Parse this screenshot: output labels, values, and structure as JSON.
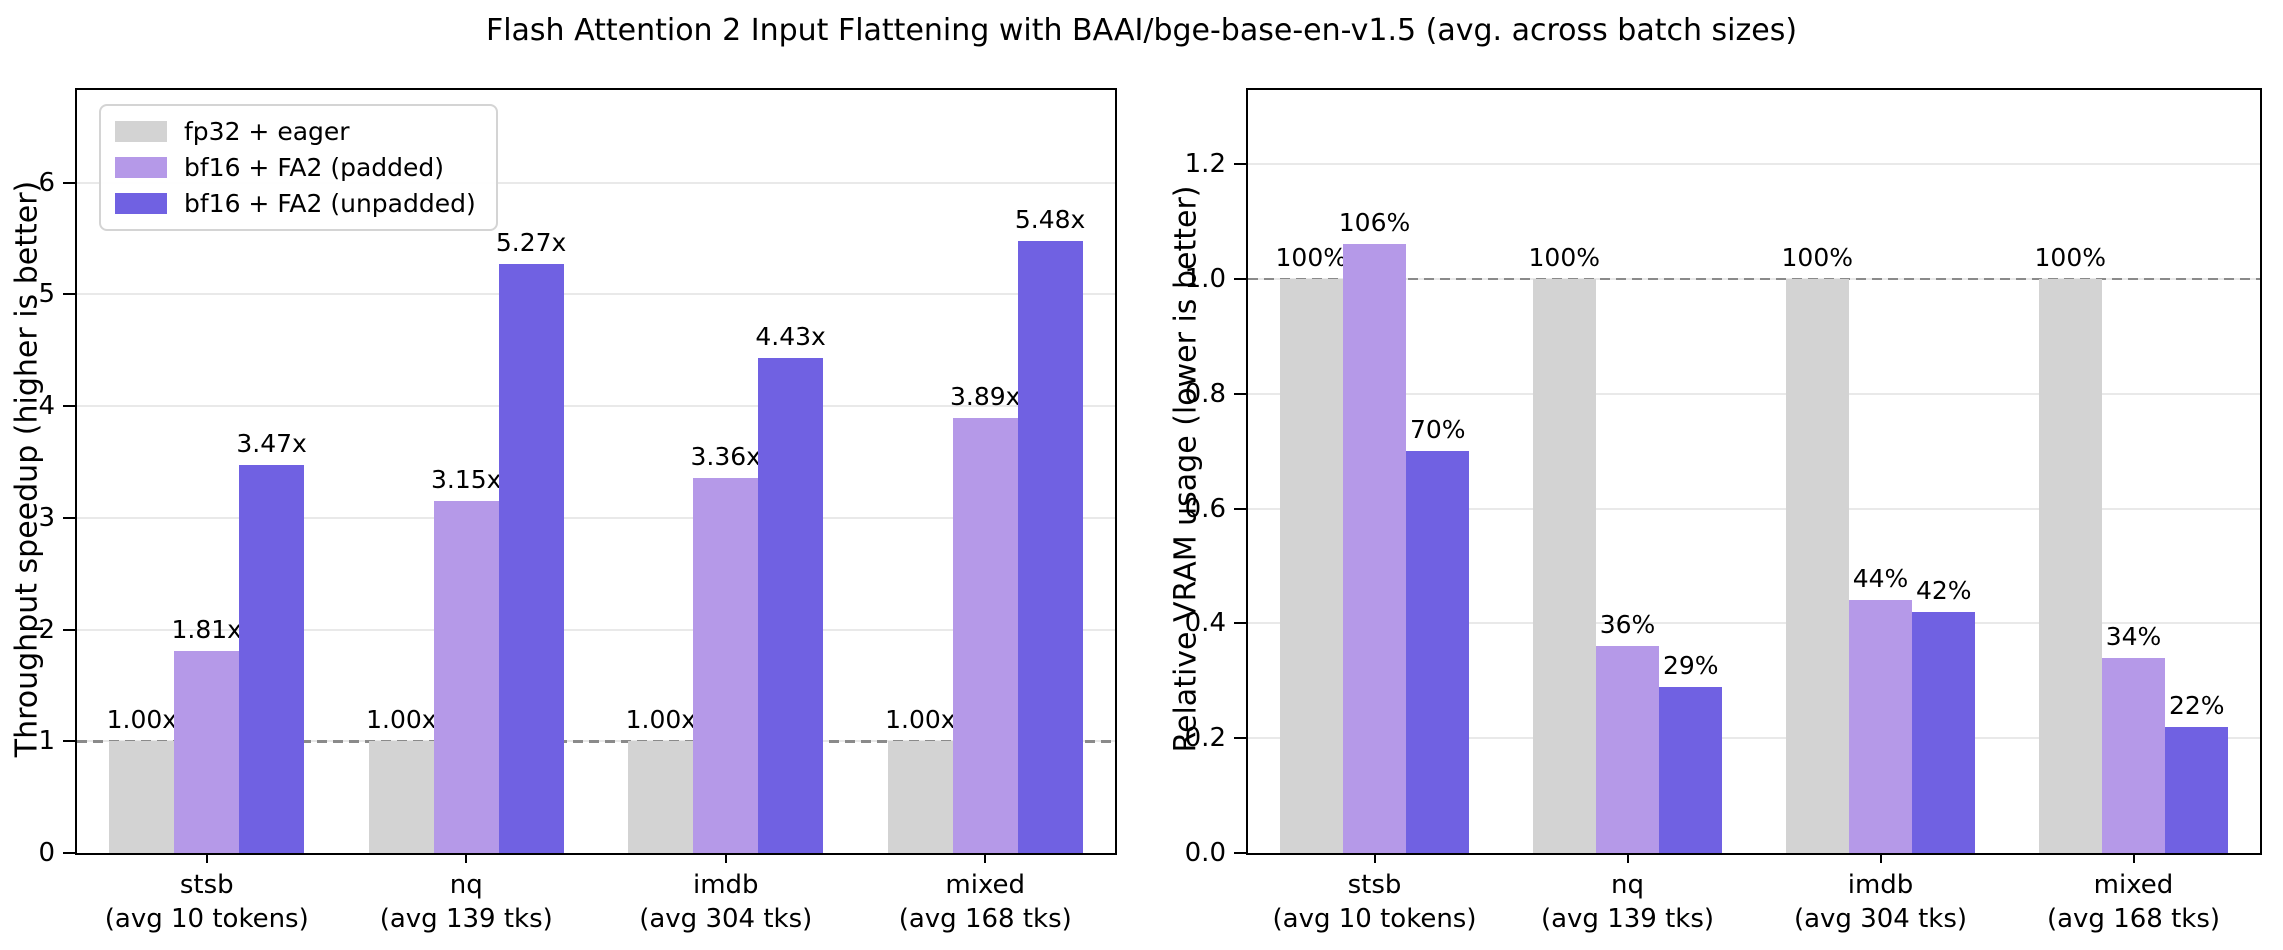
{
  "figure": {
    "title": "Flash Attention 2 Input Flattening with BAAI/bge-base-en-v1.5 (avg. across batch sizes)"
  },
  "chart_data": [
    {
      "type": "bar",
      "panel": "left",
      "ylabel": "Throughput speedup (higher is better)",
      "categories": [
        "stsb",
        "nq",
        "imdb",
        "mixed"
      ],
      "category_sublabels": [
        "(avg 10 tokens)",
        "(avg 139 tks)",
        "(avg 304 tks)",
        "(avg 168 tks)"
      ],
      "ylim": [
        0,
        6.83
      ],
      "yticks": [
        {
          "v": 0,
          "label": "0"
        },
        {
          "v": 1,
          "label": "1"
        },
        {
          "v": 2,
          "label": "2"
        },
        {
          "v": 3,
          "label": "3"
        },
        {
          "v": 4,
          "label": "4"
        },
        {
          "v": 5,
          "label": "5"
        },
        {
          "v": 6,
          "label": "6"
        }
      ],
      "grid": true,
      "baseline": 1.0,
      "legend_visible": true,
      "legend_position": "upper-left",
      "series": [
        {
          "name": "fp32 + eager",
          "color": "#d3d3d3",
          "values": [
            1.0,
            1.0,
            1.0,
            1.0
          ],
          "value_labels": [
            "1.00x",
            "1.00x",
            "1.00x",
            "1.00x"
          ]
        },
        {
          "name": "bf16 + FA2 (padded)",
          "color": "#b599e8",
          "values": [
            1.81,
            3.15,
            3.36,
            3.89
          ],
          "value_labels": [
            "1.81x",
            "3.15x",
            "3.36x",
            "3.89x"
          ]
        },
        {
          "name": "bf16 + FA2 (unpadded)",
          "color": "#7061e2",
          "values": [
            3.47,
            5.27,
            4.43,
            5.48
          ],
          "value_labels": [
            "3.47x",
            "5.27x",
            "4.43x",
            "5.48x"
          ]
        }
      ]
    },
    {
      "type": "bar",
      "panel": "right",
      "ylabel": "Relative VRAM usage (lower is better)",
      "categories": [
        "stsb",
        "nq",
        "imdb",
        "mixed"
      ],
      "category_sublabels": [
        "(avg 10 tokens)",
        "(avg 139 tks)",
        "(avg 304 tks)",
        "(avg 168 tks)"
      ],
      "ylim": [
        0,
        1.329
      ],
      "yticks": [
        {
          "v": 0.0,
          "label": "0.0"
        },
        {
          "v": 0.2,
          "label": "0.2"
        },
        {
          "v": 0.4,
          "label": "0.4"
        },
        {
          "v": 0.6,
          "label": "0.6"
        },
        {
          "v": 0.8,
          "label": "0.8"
        },
        {
          "v": 1.0,
          "label": "1.0"
        },
        {
          "v": 1.2,
          "label": "1.2"
        }
      ],
      "grid": true,
      "baseline": 1.0,
      "legend_visible": false,
      "series": [
        {
          "name": "fp32 + eager",
          "color": "#d3d3d3",
          "values": [
            1.0,
            1.0,
            1.0,
            1.0
          ],
          "value_labels": [
            "100%",
            "100%",
            "100%",
            "100%"
          ]
        },
        {
          "name": "bf16 + FA2 (padded)",
          "color": "#b599e8",
          "values": [
            1.06,
            0.36,
            0.44,
            0.34
          ],
          "value_labels": [
            "106%",
            "36%",
            "44%",
            "34%"
          ]
        },
        {
          "name": "bf16 + FA2 (unpadded)",
          "color": "#7061e2",
          "values": [
            0.7,
            0.29,
            0.42,
            0.22
          ],
          "value_labels": [
            "70%",
            "29%",
            "42%",
            "22%"
          ]
        }
      ]
    }
  ]
}
